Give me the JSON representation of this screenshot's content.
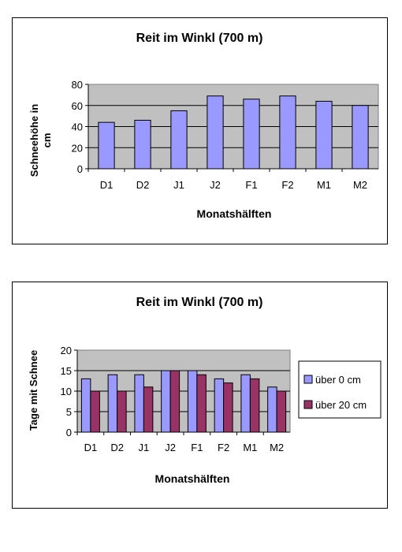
{
  "chart_data": [
    {
      "type": "bar",
      "title": "Reit im Winkl (700 m)",
      "xlabel": "Monatshälften",
      "ylabel": "Schneehöhe in cm",
      "categories": [
        "D1",
        "D2",
        "J1",
        "J2",
        "F1",
        "F2",
        "M1",
        "M2"
      ],
      "series": [
        {
          "values": [
            44,
            46,
            55,
            69,
            66,
            69,
            64,
            60
          ]
        }
      ],
      "ylim": [
        0,
        80
      ],
      "yticks": [
        "0",
        "20",
        "40",
        "60",
        "80"
      ],
      "grid": true,
      "colors": {
        "series": [
          "#9999ff"
        ],
        "plot_bg": "#c0c0c0"
      }
    },
    {
      "type": "bar",
      "title": "Reit im Winkl (700 m)",
      "xlabel": "Monatshälften",
      "ylabel": "Tage mit Schnee",
      "categories": [
        "D1",
        "D2",
        "J1",
        "J2",
        "F1",
        "F2",
        "M1",
        "M2"
      ],
      "series": [
        {
          "name": "über 0 cm",
          "values": [
            13,
            14,
            14,
            15,
            15,
            13,
            14,
            11
          ]
        },
        {
          "name": "über 20 cm",
          "values": [
            10,
            10,
            11,
            15,
            14,
            12,
            13,
            10
          ]
        }
      ],
      "ylim": [
        0,
        20
      ],
      "yticks": [
        "0",
        "5",
        "10",
        "15",
        "20"
      ],
      "grid": true,
      "legend": "right",
      "colors": {
        "series": [
          "#9999ff",
          "#993366"
        ],
        "plot_bg": "#c0c0c0"
      }
    }
  ]
}
